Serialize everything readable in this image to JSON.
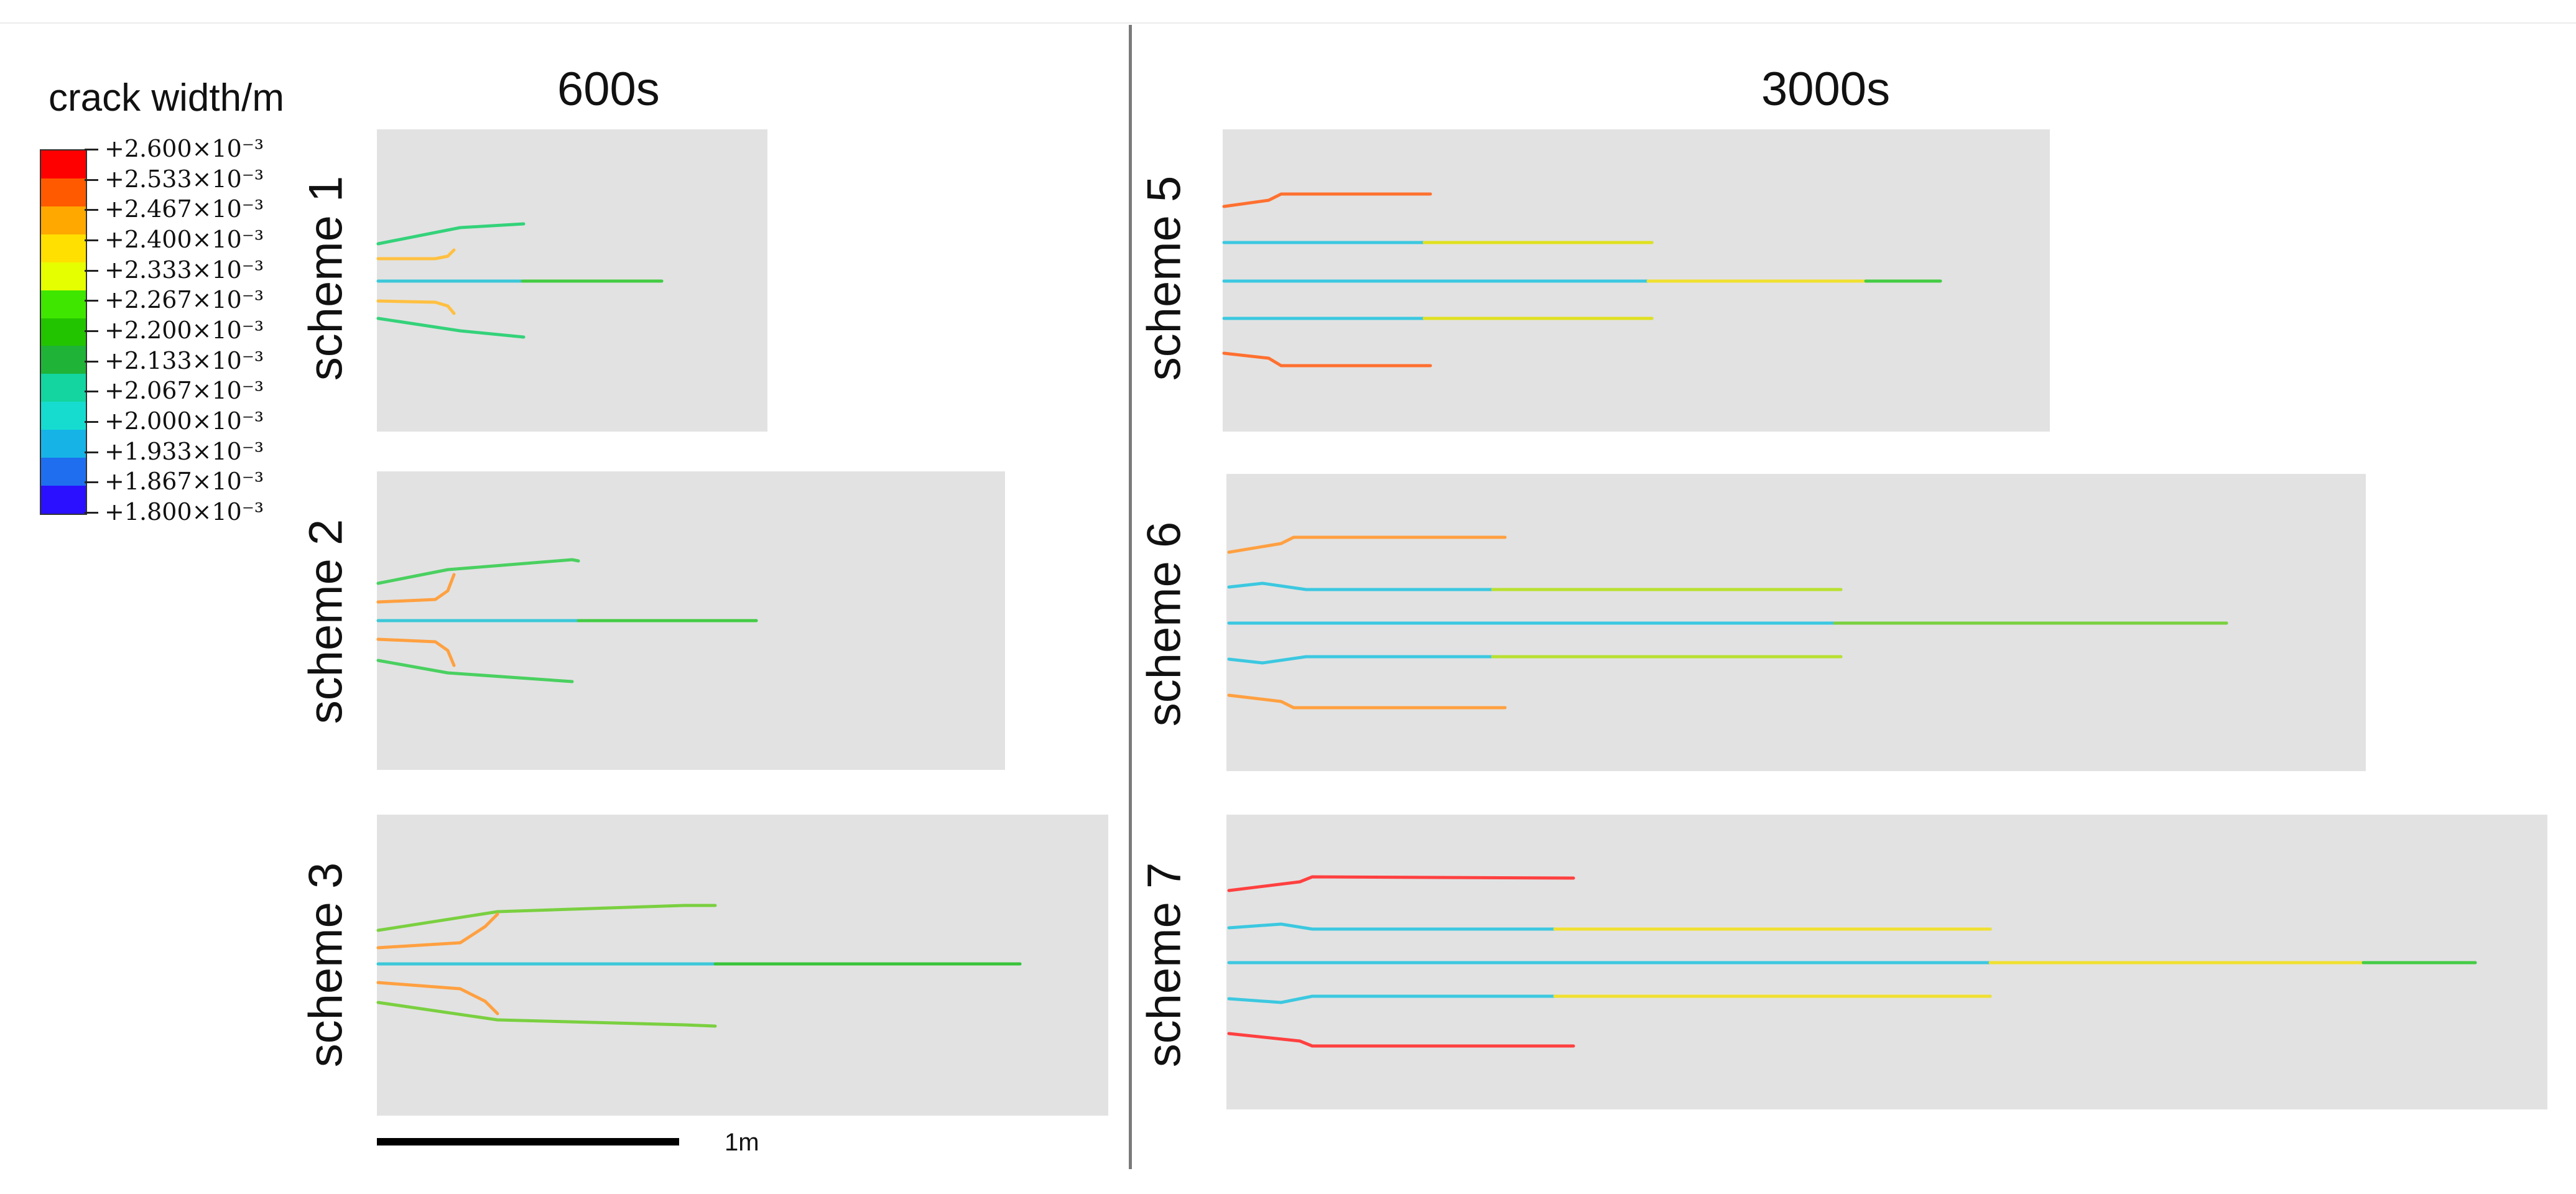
{
  "figure": {
    "time_labels": {
      "left": "600s",
      "right": "3000s"
    },
    "legend": {
      "title": "crack width/m",
      "labels": [
        "+2.600×10⁻³",
        "+2.533×10⁻³",
        "+2.467×10⁻³",
        "+2.400×10⁻³",
        "+2.333×10⁻³",
        "+2.267×10⁻³",
        "+2.200×10⁻³",
        "+2.133×10⁻³",
        "+2.067×10⁻³",
        "+2.000×10⁻³",
        "+1.933×10⁻³",
        "+1.867×10⁻³",
        "+1.800×10⁻³"
      ],
      "colors": [
        "#ff0000",
        "#ff5a00",
        "#ffa800",
        "#ffe000",
        "#e6ff00",
        "#3fe600",
        "#22c400",
        "#1fb338",
        "#14d4a0",
        "#16dcd0",
        "#16b4e6",
        "#1f6ef0",
        "#2a10ff"
      ]
    },
    "panels": [
      {
        "label": "scheme 1"
      },
      {
        "label": "scheme 2"
      },
      {
        "label": "scheme 3"
      },
      {
        "label": "scheme 5"
      },
      {
        "label": "scheme 6"
      },
      {
        "label": "scheme 7"
      }
    ],
    "scale_bar": {
      "label": "1m"
    }
  }
}
